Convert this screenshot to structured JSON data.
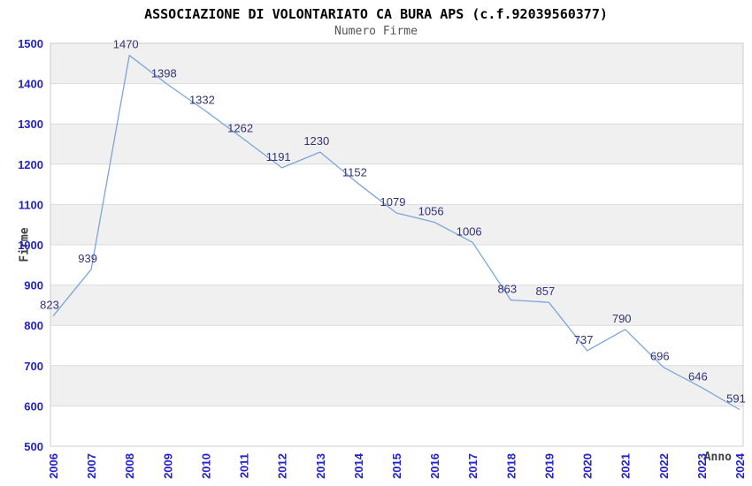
{
  "chart_data": {
    "type": "line",
    "title": "ASSOCIAZIONE DI VOLONTARIATO CA BURA APS (c.f.92039560377)",
    "subtitle": "Numero Firme",
    "xlabel": "Anno",
    "ylabel": "Firme",
    "categories": [
      "2006",
      "2007",
      "2008",
      "2009",
      "2010",
      "2011",
      "2012",
      "2013",
      "2014",
      "2015",
      "2016",
      "2017",
      "2018",
      "2019",
      "2020",
      "2021",
      "2022",
      "2023",
      "2024"
    ],
    "values": [
      823,
      939,
      1470,
      1398,
      1332,
      1262,
      1191,
      1230,
      1152,
      1079,
      1056,
      1006,
      863,
      857,
      737,
      790,
      696,
      646,
      591
    ],
    "series_name": "Numero Firme",
    "ylim": [
      500,
      1500
    ],
    "ytick_step": 100,
    "grid": "horizontal-bands",
    "legend": "none",
    "show_data_labels": true,
    "point_markers": false,
    "colors": {
      "line": "#7CA5DC",
      "tick_label": "#2222CC",
      "data_label": "#333377",
      "band": "#F0F0F0",
      "band_alt": "#FFFFFF",
      "gridline": "#DBDBDB",
      "border": "#CCCCCC",
      "title": "#000000",
      "subtitle": "#555555",
      "axis_title": "#3F3F3F",
      "background": "#FFFFFF"
    }
  }
}
